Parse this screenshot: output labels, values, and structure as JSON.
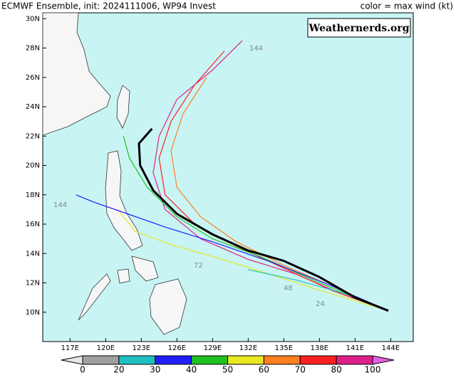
{
  "header": {
    "title_left": "ECMWF  Ensemble, init: 2024111006, WP94 Invest",
    "title_right": "color = max wind (kt)",
    "watermark": "Weathernerds.org"
  },
  "map": {
    "lon_range": [
      114.7,
      145.9
    ],
    "lat_range": [
      8,
      30.4
    ],
    "lon_ticks": [
      {
        "value": 117,
        "label": "117E"
      },
      {
        "value": 120,
        "label": "120E"
      },
      {
        "value": 123,
        "label": "123E"
      },
      {
        "value": 126,
        "label": "126E"
      },
      {
        "value": 129,
        "label": "129E"
      },
      {
        "value": 132,
        "label": "132E"
      },
      {
        "value": 135,
        "label": "135E"
      },
      {
        "value": 138,
        "label": "138E"
      },
      {
        "value": 141,
        "label": "141E"
      },
      {
        "value": 144,
        "label": "144E"
      }
    ],
    "lat_ticks": [
      {
        "value": 10,
        "label": "10N"
      },
      {
        "value": 12,
        "label": "12N"
      },
      {
        "value": 14,
        "label": "14N"
      },
      {
        "value": 16,
        "label": "16N"
      },
      {
        "value": 18,
        "label": "18N"
      },
      {
        "value": 20,
        "label": "20N"
      },
      {
        "value": 22,
        "label": "22N"
      },
      {
        "value": 24,
        "label": "24N"
      },
      {
        "value": 26,
        "label": "26N"
      },
      {
        "value": 28,
        "label": "28N"
      },
      {
        "value": 30,
        "label": "30N"
      }
    ],
    "mean_track": {
      "lon": [
        143.8,
        141,
        138,
        135,
        132,
        129,
        126,
        124,
        122.9,
        122.8,
        123.9
      ],
      "lat": [
        10.1,
        11,
        12.4,
        13.5,
        14.2,
        15.3,
        16.7,
        18.3,
        20,
        21.5,
        22.5
      ]
    },
    "member_tracks": [
      {
        "color": "#e0208a",
        "lon": [
          143.8,
          140,
          136,
          132,
          128,
          125,
          124,
          124.5,
          126,
          129,
          131.5
        ],
        "lat": [
          10.1,
          11.2,
          12.6,
          13.6,
          15,
          17,
          19.5,
          22,
          24.5,
          26.5,
          28.5
        ]
      },
      {
        "color": "#ff2020",
        "lon": [
          143.8,
          139,
          135,
          131,
          127.5,
          125,
          124.5,
          125.5,
          127.5,
          130
        ],
        "lat": [
          10.1,
          11.5,
          13,
          14.5,
          16,
          18,
          20.5,
          23,
          25.5,
          27.8
        ]
      },
      {
        "color": "#ff8020",
        "lon": [
          143.8,
          139,
          135,
          131,
          128,
          126,
          125.5,
          126.5,
          128.5
        ],
        "lat": [
          10.1,
          11.8,
          13.2,
          14.8,
          16.5,
          18.5,
          21,
          23.5,
          26
        ]
      },
      {
        "color": "#e8e820",
        "lon": [
          143.8,
          138,
          133,
          129,
          125.5,
          122.5,
          121
        ],
        "lat": [
          10.1,
          11.5,
          12.8,
          13.8,
          14.6,
          15.5,
          17
        ]
      },
      {
        "color": "#20c020",
        "lon": [
          143.8,
          138,
          133,
          129,
          126,
          123.5,
          122,
          121.5
        ],
        "lat": [
          10.1,
          12,
          13.8,
          15,
          16.5,
          18.5,
          20.5,
          22
        ]
      },
      {
        "color": "#2020ff",
        "lon": [
          143.8,
          139,
          134,
          129,
          125,
          121.5,
          119,
          117.5
        ],
        "lat": [
          10.1,
          11.8,
          13.4,
          14.8,
          15.8,
          16.8,
          17.5,
          18
        ]
      },
      {
        "color": "#20c0c0",
        "lon": [
          143.8,
          140,
          136,
          132
        ],
        "lat": [
          10.1,
          11.3,
          12.2,
          12.9
        ]
      }
    ],
    "hour_labels": [
      "144",
      "144",
      "72",
      "48",
      "24"
    ]
  },
  "colorbar": {
    "ticks": [
      0,
      20,
      30,
      40,
      50,
      60,
      70,
      80,
      100
    ],
    "colors": [
      "#e8e8e8",
      "#a0a0a0",
      "#20c0c0",
      "#2020ff",
      "#20c020",
      "#e8e820",
      "#ff8020",
      "#ff2020",
      "#e0208a",
      "#e060e0"
    ]
  }
}
